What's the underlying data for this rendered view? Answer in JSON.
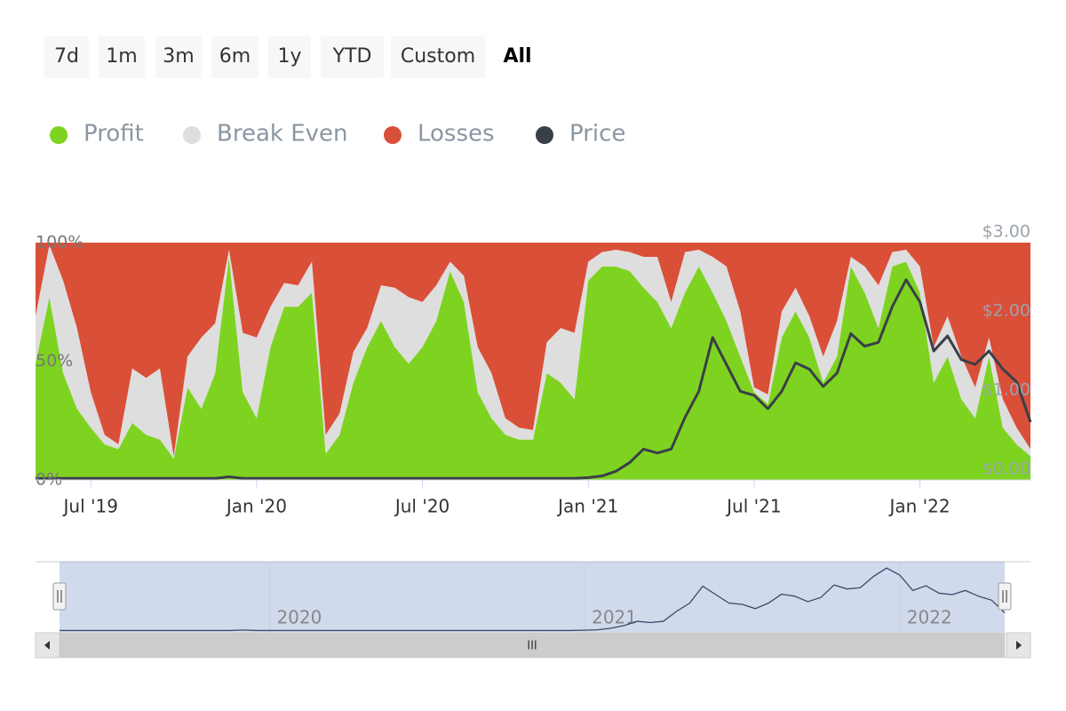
{
  "range_buttons": [
    "7d",
    "1m",
    "3m",
    "6m",
    "1y",
    "YTD",
    "Custom",
    "All"
  ],
  "selected_button": "All",
  "chart_data": {
    "type": "area",
    "stacking": "percent",
    "categories": [
      null,
      null,
      null,
      null,
      "Jul '19",
      null,
      null,
      null,
      null,
      null,
      null,
      null,
      null,
      null,
      null,
      null,
      "Jan '20",
      null,
      null,
      null,
      null,
      null,
      null,
      null,
      null,
      null,
      null,
      null,
      "Jul '20",
      null,
      null,
      null,
      null,
      null,
      null,
      null,
      null,
      null,
      null,
      null,
      "Jan '21",
      null,
      null,
      null,
      null,
      null,
      null,
      null,
      null,
      null,
      null,
      null,
      "Jul '21",
      null,
      null,
      null,
      null,
      null,
      null,
      null,
      null,
      null,
      null,
      null,
      "Jan '22",
      null,
      null,
      null,
      null,
      null,
      null,
      null,
      null
    ],
    "series": [
      {
        "name": "Profit",
        "color": "#7ed321",
        "values": [
          49,
          77,
          45,
          30,
          22,
          15,
          13,
          24,
          19,
          17,
          9,
          39,
          30,
          45,
          94,
          37,
          26,
          56,
          73,
          73,
          79,
          11,
          19,
          41,
          56,
          67,
          56,
          49,
          56,
          67,
          88,
          75,
          37,
          26,
          19,
          17,
          17,
          45,
          41,
          34,
          84,
          90,
          90,
          88,
          81,
          75,
          64,
          79,
          90,
          79,
          67,
          52,
          37,
          32,
          60,
          71,
          60,
          41,
          52,
          90,
          79,
          64,
          90,
          92,
          79,
          41,
          52,
          34,
          26,
          52,
          22,
          15,
          10
        ]
      },
      {
        "name": "Break Even",
        "color": "#dedede",
        "values": [
          20,
          22,
          39,
          34,
          15,
          4,
          2,
          23,
          24,
          30,
          1,
          13,
          30,
          21,
          3,
          25,
          34,
          17,
          10,
          9,
          13,
          8,
          9,
          13,
          8,
          15,
          25,
          28,
          19,
          15,
          4,
          11,
          19,
          19,
          7,
          5,
          4,
          13,
          23,
          28,
          8,
          6,
          7,
          8,
          13,
          19,
          11,
          17,
          7,
          15,
          23,
          19,
          2,
          4,
          11,
          10,
          9,
          11,
          15,
          4,
          11,
          18,
          6,
          5,
          11,
          15,
          17,
          18,
          13,
          8,
          12,
          7,
          3
        ]
      },
      {
        "name": "Losses",
        "color": "#da4f38",
        "values": [
          31,
          1,
          16,
          36,
          63,
          81,
          85,
          53,
          57,
          53,
          90,
          48,
          40,
          34,
          3,
          38,
          40,
          27,
          17,
          18,
          8,
          81,
          72,
          46,
          36,
          18,
          19,
          23,
          25,
          18,
          8,
          14,
          44,
          55,
          74,
          78,
          79,
          42,
          36,
          38,
          8,
          4,
          3,
          4,
          6,
          6,
          25,
          4,
          3,
          6,
          10,
          29,
          61,
          64,
          29,
          19,
          31,
          48,
          33,
          6,
          10,
          18,
          4,
          3,
          10,
          44,
          31,
          48,
          61,
          40,
          66,
          78,
          87
        ]
      },
      {
        "name": "Price",
        "color": "#3a3f47",
        "type": "line",
        "axis": "y2",
        "values": [
          0.02,
          0.02,
          0.02,
          0.02,
          0.02,
          0.02,
          0.02,
          0.02,
          0.02,
          0.02,
          0.02,
          0.02,
          0.02,
          0.02,
          0.04,
          0.02,
          0.02,
          0.02,
          0.02,
          0.02,
          0.02,
          0.02,
          0.02,
          0.02,
          0.02,
          0.02,
          0.02,
          0.02,
          0.02,
          0.02,
          0.02,
          0.02,
          0.02,
          0.02,
          0.02,
          0.02,
          0.02,
          0.02,
          0.02,
          0.02,
          0.03,
          0.05,
          0.11,
          0.22,
          0.39,
          0.34,
          0.39,
          0.79,
          1.12,
          1.8,
          1.46,
          1.12,
          1.07,
          0.9,
          1.12,
          1.48,
          1.4,
          1.18,
          1.35,
          1.85,
          1.69,
          1.74,
          2.19,
          2.53,
          2.25,
          1.63,
          1.82,
          1.52,
          1.46,
          1.63,
          1.4,
          1.24,
          0.73
        ]
      }
    ],
    "ylim": [
      0,
      100
    ],
    "yticks": [
      {
        "value": 0,
        "label": "0%"
      },
      {
        "value": 50,
        "label": "50%"
      },
      {
        "value": 100,
        "label": "100%"
      }
    ],
    "y2lim": [
      0,
      3
    ],
    "y2ticks": [
      {
        "value": 0,
        "label": "$0.00"
      },
      {
        "value": 1,
        "label": "$1.00"
      },
      {
        "value": 2,
        "label": "$2.00"
      },
      {
        "value": 3,
        "label": "$3.00"
      }
    ],
    "legend": "top-left"
  },
  "navigator": {
    "labels": [
      "2020",
      "2021",
      "2022"
    ],
    "scrollbar_label": "III"
  }
}
